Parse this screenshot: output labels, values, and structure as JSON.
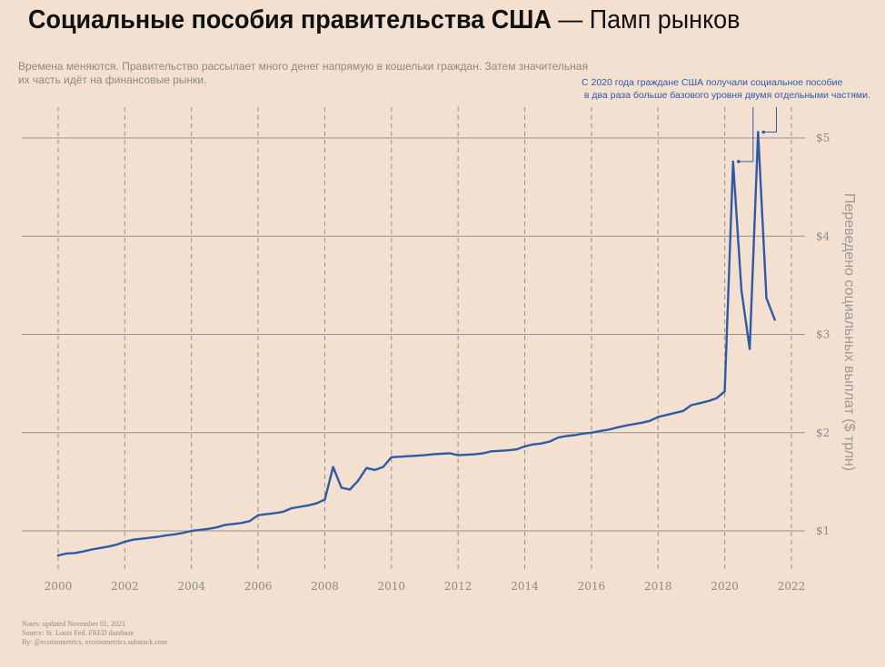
{
  "title_bold": "Социальные пособия правительства США",
  "title_rest": " — Памп рынков",
  "subtitle": "Времена меняются. Правительство рассылает много денег напрямую в кошельки граждан. Затем значительная их часть идёт на финансовые рынки.",
  "annotation": "С 2020 года граждане США получали социальное пособие\n в два раза больше базового уровня двумя отдельными частями.",
  "footer": {
    "notes": "Notes: updated November 01, 2021",
    "source": "Source: St. Louis Fed. FRED database",
    "by": "By: @ecoinometrics, ecoinometrics.substack.com"
  },
  "colors": {
    "background": "#f3e0d0",
    "line": "#2e5aa6",
    "grid": "#8a8a8a",
    "text_muted": "#8a8a8a"
  },
  "chart_data": {
    "type": "line",
    "title": "Социальные пособия правительства США — Памп рынков",
    "xlabel": "",
    "ylabel": "Переведено социальных выплат ($ трлн)",
    "xlim": [
      1999.6,
      2022.4
    ],
    "ylim": [
      0.6,
      5.3
    ],
    "x_ticks": [
      2000,
      2002,
      2004,
      2006,
      2008,
      2010,
      2012,
      2014,
      2016,
      2018,
      2020,
      2022
    ],
    "x_tick_labels": [
      "2000",
      "2002",
      "2004",
      "2006",
      "2008",
      "2010",
      "2012",
      "2014",
      "2016",
      "2018",
      "2020",
      "2022"
    ],
    "y_ticks": [
      1,
      2,
      3,
      4,
      5
    ],
    "y_tick_labels": [
      "$1",
      "$2",
      "$3",
      "$4",
      "$5"
    ],
    "grid": "horizontal solid at y ticks, vertical dashed at x ticks",
    "y_axis_position": "right",
    "series": [
      {
        "values": [
          [
            2000.0,
            0.75
          ],
          [
            2000.25,
            0.77
          ],
          [
            2000.5,
            0.775
          ],
          [
            2000.75,
            0.79
          ],
          [
            2001.0,
            0.81
          ],
          [
            2001.25,
            0.825
          ],
          [
            2001.5,
            0.84
          ],
          [
            2001.75,
            0.86
          ],
          [
            2002.0,
            0.89
          ],
          [
            2002.25,
            0.91
          ],
          [
            2002.5,
            0.92
          ],
          [
            2002.75,
            0.93
          ],
          [
            2003.0,
            0.94
          ],
          [
            2003.25,
            0.955
          ],
          [
            2003.5,
            0.965
          ],
          [
            2003.75,
            0.98
          ],
          [
            2004.0,
            1.0
          ],
          [
            2004.25,
            1.01
          ],
          [
            2004.5,
            1.02
          ],
          [
            2004.75,
            1.035
          ],
          [
            2005.0,
            1.06
          ],
          [
            2005.25,
            1.07
          ],
          [
            2005.5,
            1.08
          ],
          [
            2005.75,
            1.1
          ],
          [
            2006.0,
            1.16
          ],
          [
            2006.25,
            1.17
          ],
          [
            2006.5,
            1.18
          ],
          [
            2006.75,
            1.195
          ],
          [
            2007.0,
            1.23
          ],
          [
            2007.25,
            1.245
          ],
          [
            2007.5,
            1.26
          ],
          [
            2007.75,
            1.28
          ],
          [
            2008.0,
            1.32
          ],
          [
            2008.25,
            1.65
          ],
          [
            2008.5,
            1.44
          ],
          [
            2008.75,
            1.42
          ],
          [
            2009.0,
            1.51
          ],
          [
            2009.25,
            1.64
          ],
          [
            2009.5,
            1.62
          ],
          [
            2009.75,
            1.65
          ],
          [
            2010.0,
            1.75
          ],
          [
            2010.25,
            1.755
          ],
          [
            2010.5,
            1.76
          ],
          [
            2010.75,
            1.765
          ],
          [
            2011.0,
            1.77
          ],
          [
            2011.25,
            1.78
          ],
          [
            2011.5,
            1.785
          ],
          [
            2011.75,
            1.79
          ],
          [
            2012.0,
            1.77
          ],
          [
            2012.25,
            1.775
          ],
          [
            2012.5,
            1.78
          ],
          [
            2012.75,
            1.79
          ],
          [
            2013.0,
            1.81
          ],
          [
            2013.25,
            1.815
          ],
          [
            2013.5,
            1.82
          ],
          [
            2013.75,
            1.83
          ],
          [
            2014.0,
            1.86
          ],
          [
            2014.25,
            1.88
          ],
          [
            2014.5,
            1.89
          ],
          [
            2014.75,
            1.91
          ],
          [
            2015.0,
            1.95
          ],
          [
            2015.25,
            1.965
          ],
          [
            2015.5,
            1.975
          ],
          [
            2015.75,
            1.99
          ],
          [
            2016.0,
            2.0
          ],
          [
            2016.25,
            2.015
          ],
          [
            2016.5,
            2.03
          ],
          [
            2016.75,
            2.05
          ],
          [
            2017.0,
            2.07
          ],
          [
            2017.25,
            2.085
          ],
          [
            2017.5,
            2.1
          ],
          [
            2017.75,
            2.12
          ],
          [
            2018.0,
            2.16
          ],
          [
            2018.25,
            2.18
          ],
          [
            2018.5,
            2.2
          ],
          [
            2018.75,
            2.22
          ],
          [
            2019.0,
            2.28
          ],
          [
            2019.25,
            2.3
          ],
          [
            2019.5,
            2.32
          ],
          [
            2019.75,
            2.35
          ],
          [
            2020.0,
            2.42
          ],
          [
            2020.25,
            4.76
          ],
          [
            2020.5,
            3.45
          ],
          [
            2020.75,
            2.85
          ],
          [
            2021.0,
            5.06
          ],
          [
            2021.25,
            3.37
          ],
          [
            2021.5,
            3.15
          ]
        ]
      }
    ]
  }
}
